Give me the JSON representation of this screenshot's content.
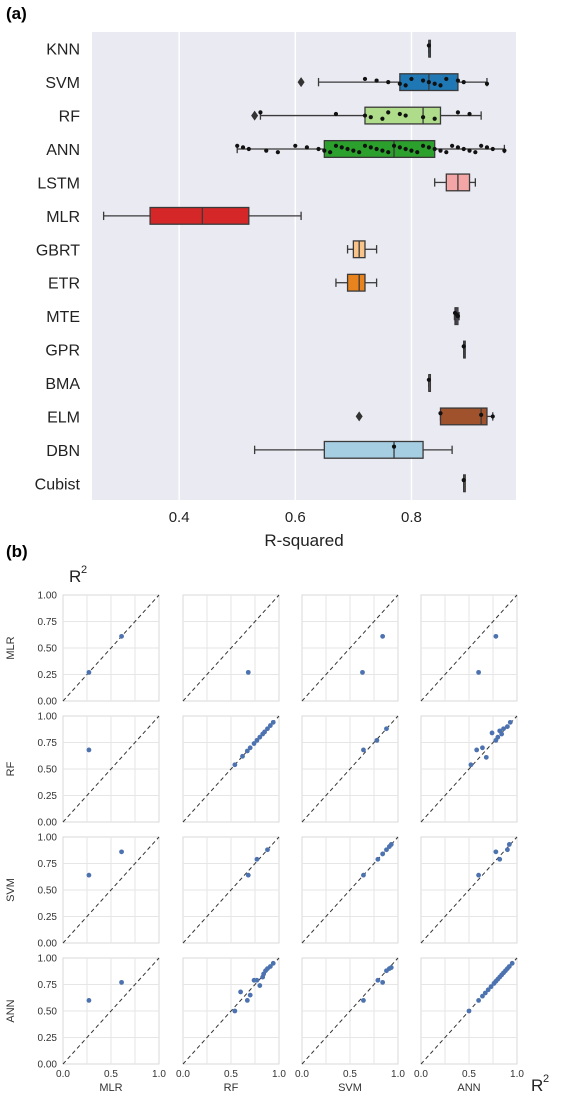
{
  "panel_a": {
    "label": "(a)",
    "chart_data": {
      "type": "box",
      "xlabel": "R-squared",
      "ylabel": "",
      "xlim": [
        0.25,
        0.98
      ],
      "xticks": [
        "0.4",
        "0.6",
        "0.8"
      ],
      "grid": true,
      "categories": [
        "KNN",
        "SVM",
        "RF",
        "ANN",
        "LSTM",
        "MLR",
        "GBRT",
        "ETR",
        "MTE",
        "GPR",
        "BMA",
        "ELM",
        "DBN",
        "Cubist"
      ],
      "boxes": [
        {
          "name": "KNN",
          "q1": 0.83,
          "median": 0.83,
          "q3": 0.83,
          "whislo": 0.83,
          "whishi": 0.83,
          "fliers": [],
          "color": "#1f77b4"
        },
        {
          "name": "SVM",
          "q1": 0.78,
          "median": 0.83,
          "q3": 0.88,
          "whislo": 0.64,
          "whishi": 0.93,
          "fliers": [
            0.61
          ],
          "color": "#1f77b4"
        },
        {
          "name": "RF",
          "q1": 0.72,
          "median": 0.82,
          "q3": 0.85,
          "whislo": 0.54,
          "whishi": 0.92,
          "fliers": [
            0.53
          ],
          "color": "#aedc8a"
        },
        {
          "name": "ANN",
          "q1": 0.65,
          "median": 0.77,
          "q3": 0.84,
          "whislo": 0.5,
          "whishi": 0.96,
          "fliers": [],
          "color": "#2ca02c"
        },
        {
          "name": "LSTM",
          "q1": 0.86,
          "median": 0.88,
          "q3": 0.9,
          "whislo": 0.84,
          "whishi": 0.91,
          "fliers": [],
          "color": "#f4a5a5"
        },
        {
          "name": "MLR",
          "q1": 0.35,
          "median": 0.44,
          "q3": 0.52,
          "whislo": 0.27,
          "whishi": 0.61,
          "fliers": [],
          "color": "#d62728"
        },
        {
          "name": "GBRT",
          "q1": 0.7,
          "median": 0.71,
          "q3": 0.72,
          "whislo": 0.69,
          "whishi": 0.74,
          "fliers": [],
          "color": "#f9c48a"
        },
        {
          "name": "ETR",
          "q1": 0.69,
          "median": 0.71,
          "q3": 0.72,
          "whislo": 0.67,
          "whishi": 0.74,
          "fliers": [],
          "color": "#e8831e"
        },
        {
          "name": "MTE",
          "q1": 0.875,
          "median": 0.877,
          "q3": 0.88,
          "whislo": 0.874,
          "whishi": 0.882,
          "fliers": [],
          "color": "#7b5ea7"
        },
        {
          "name": "GPR",
          "q1": 0.89,
          "median": 0.89,
          "q3": 0.89,
          "whislo": 0.89,
          "whishi": 0.89,
          "fliers": [],
          "color": "#7b5ea7"
        },
        {
          "name": "BMA",
          "q1": 0.83,
          "median": 0.83,
          "q3": 0.83,
          "whislo": 0.83,
          "whishi": 0.83,
          "fliers": [],
          "color": "#c49c94"
        },
        {
          "name": "ELM",
          "q1": 0.85,
          "median": 0.92,
          "q3": 0.93,
          "whislo": 0.85,
          "whishi": 0.94,
          "fliers": [
            0.71
          ],
          "color": "#a0522d"
        },
        {
          "name": "DBN",
          "q1": 0.65,
          "median": 0.77,
          "q3": 0.82,
          "whislo": 0.53,
          "whishi": 0.87,
          "fliers": [],
          "color": "#a6cee3"
        },
        {
          "name": "Cubist",
          "q1": 0.89,
          "median": 0.89,
          "q3": 0.89,
          "whislo": 0.89,
          "whishi": 0.89,
          "fliers": [],
          "color": "#fdb462"
        }
      ],
      "swarm": [
        {
          "name": "KNN",
          "values": [
            0.83
          ]
        },
        {
          "name": "SVM",
          "values": [
            0.72,
            0.74,
            0.76,
            0.78,
            0.79,
            0.8,
            0.82,
            0.83,
            0.84,
            0.85,
            0.86,
            0.88,
            0.89,
            0.93
          ]
        },
        {
          "name": "RF",
          "values": [
            0.54,
            0.67,
            0.72,
            0.73,
            0.75,
            0.76,
            0.78,
            0.79,
            0.82,
            0.84,
            0.88,
            0.9
          ]
        },
        {
          "name": "ANN",
          "values": [
            0.5,
            0.51,
            0.52,
            0.55,
            0.57,
            0.6,
            0.62,
            0.64,
            0.65,
            0.66,
            0.67,
            0.68,
            0.69,
            0.7,
            0.71,
            0.72,
            0.73,
            0.74,
            0.75,
            0.76,
            0.77,
            0.78,
            0.79,
            0.8,
            0.81,
            0.82,
            0.83,
            0.84,
            0.85,
            0.86,
            0.87,
            0.88,
            0.89,
            0.9,
            0.91,
            0.92,
            0.93,
            0.94,
            0.96
          ]
        },
        {
          "name": "MTE",
          "values": [
            0.875,
            0.878,
            0.88
          ]
        },
        {
          "name": "GPR",
          "values": [
            0.89
          ]
        },
        {
          "name": "BMA",
          "values": [
            0.83
          ]
        },
        {
          "name": "ELM",
          "values": [
            0.85,
            0.92,
            0.94
          ]
        },
        {
          "name": "DBN",
          "values": [
            0.77
          ]
        },
        {
          "name": "Cubist",
          "values": [
            0.89
          ]
        }
      ]
    }
  },
  "panel_b": {
    "label": "(b)",
    "corner_label_top": "R",
    "corner_label_right": "R",
    "superscript": "2",
    "chart_data": {
      "type": "scatter",
      "rows": [
        "MLR",
        "RF",
        "SVM",
        "ANN"
      ],
      "cols": [
        "MLR",
        "RF",
        "SVM",
        "ANN"
      ],
      "xlim": [
        0,
        1
      ],
      "ylim": [
        0,
        1
      ],
      "yticks": [
        "0.00",
        "0.25",
        "0.50",
        "0.75",
        "1.00"
      ],
      "xticks": [
        "0.0",
        "0.5",
        "1.0"
      ],
      "reference_line": "y = x",
      "point_color": "#4c72b0",
      "cells": [
        [
          {
            "x": [
              0.27,
              0.61
            ],
            "y": [
              0.27,
              0.61
            ]
          },
          {
            "x": [
              0.68
            ],
            "y": [
              0.27
            ]
          },
          {
            "x": [
              0.63,
              0.84
            ],
            "y": [
              0.27,
              0.61
            ]
          },
          {
            "x": [
              0.6,
              0.78
            ],
            "y": [
              0.27,
              0.61
            ]
          }
        ],
        [
          {
            "x": [
              0.27
            ],
            "y": [
              0.68
            ]
          },
          {
            "x": [
              0.54,
              0.62,
              0.67,
              0.7,
              0.74,
              0.77,
              0.8,
              0.83,
              0.85,
              0.88,
              0.91,
              0.94
            ],
            "y": [
              0.54,
              0.62,
              0.67,
              0.7,
              0.74,
              0.77,
              0.8,
              0.83,
              0.85,
              0.88,
              0.91,
              0.94
            ]
          },
          {
            "x": [
              0.64,
              0.78,
              0.88
            ],
            "y": [
              0.68,
              0.77,
              0.88
            ]
          },
          {
            "x": [
              0.52,
              0.58,
              0.64,
              0.68,
              0.74,
              0.78,
              0.8,
              0.82,
              0.84,
              0.86,
              0.9,
              0.93
            ],
            "y": [
              0.54,
              0.68,
              0.7,
              0.61,
              0.84,
              0.77,
              0.8,
              0.86,
              0.83,
              0.88,
              0.9,
              0.94
            ]
          }
        ],
        [
          {
            "x": [
              0.27,
              0.61
            ],
            "y": [
              0.64,
              0.86
            ]
          },
          {
            "x": [
              0.68,
              0.77,
              0.88
            ],
            "y": [
              0.64,
              0.79,
              0.88
            ]
          },
          {
            "x": [
              0.64,
              0.79,
              0.84,
              0.88,
              0.91,
              0.93
            ],
            "y": [
              0.64,
              0.79,
              0.84,
              0.88,
              0.91,
              0.93
            ]
          },
          {
            "x": [
              0.6,
              0.78,
              0.82,
              0.9,
              0.92
            ],
            "y": [
              0.64,
              0.86,
              0.79,
              0.88,
              0.93
            ]
          }
        ],
        [
          {
            "x": [
              0.27,
              0.61
            ],
            "y": [
              0.6,
              0.77
            ]
          },
          {
            "x": [
              0.54,
              0.6,
              0.67,
              0.7,
              0.74,
              0.77,
              0.8,
              0.83,
              0.84,
              0.86,
              0.88,
              0.91,
              0.94
            ],
            "y": [
              0.5,
              0.68,
              0.6,
              0.65,
              0.79,
              0.79,
              0.74,
              0.82,
              0.85,
              0.88,
              0.9,
              0.92,
              0.95
            ]
          },
          {
            "x": [
              0.64,
              0.79,
              0.84,
              0.88,
              0.91,
              0.93
            ],
            "y": [
              0.6,
              0.79,
              0.77,
              0.88,
              0.9,
              0.91
            ]
          },
          {
            "x": [
              0.5,
              0.6,
              0.64,
              0.67,
              0.7,
              0.73,
              0.76,
              0.78,
              0.8,
              0.82,
              0.84,
              0.86,
              0.88,
              0.9,
              0.92,
              0.95
            ],
            "y": [
              0.5,
              0.6,
              0.64,
              0.67,
              0.7,
              0.73,
              0.76,
              0.78,
              0.8,
              0.82,
              0.84,
              0.86,
              0.88,
              0.9,
              0.92,
              0.95
            ]
          }
        ]
      ]
    }
  }
}
